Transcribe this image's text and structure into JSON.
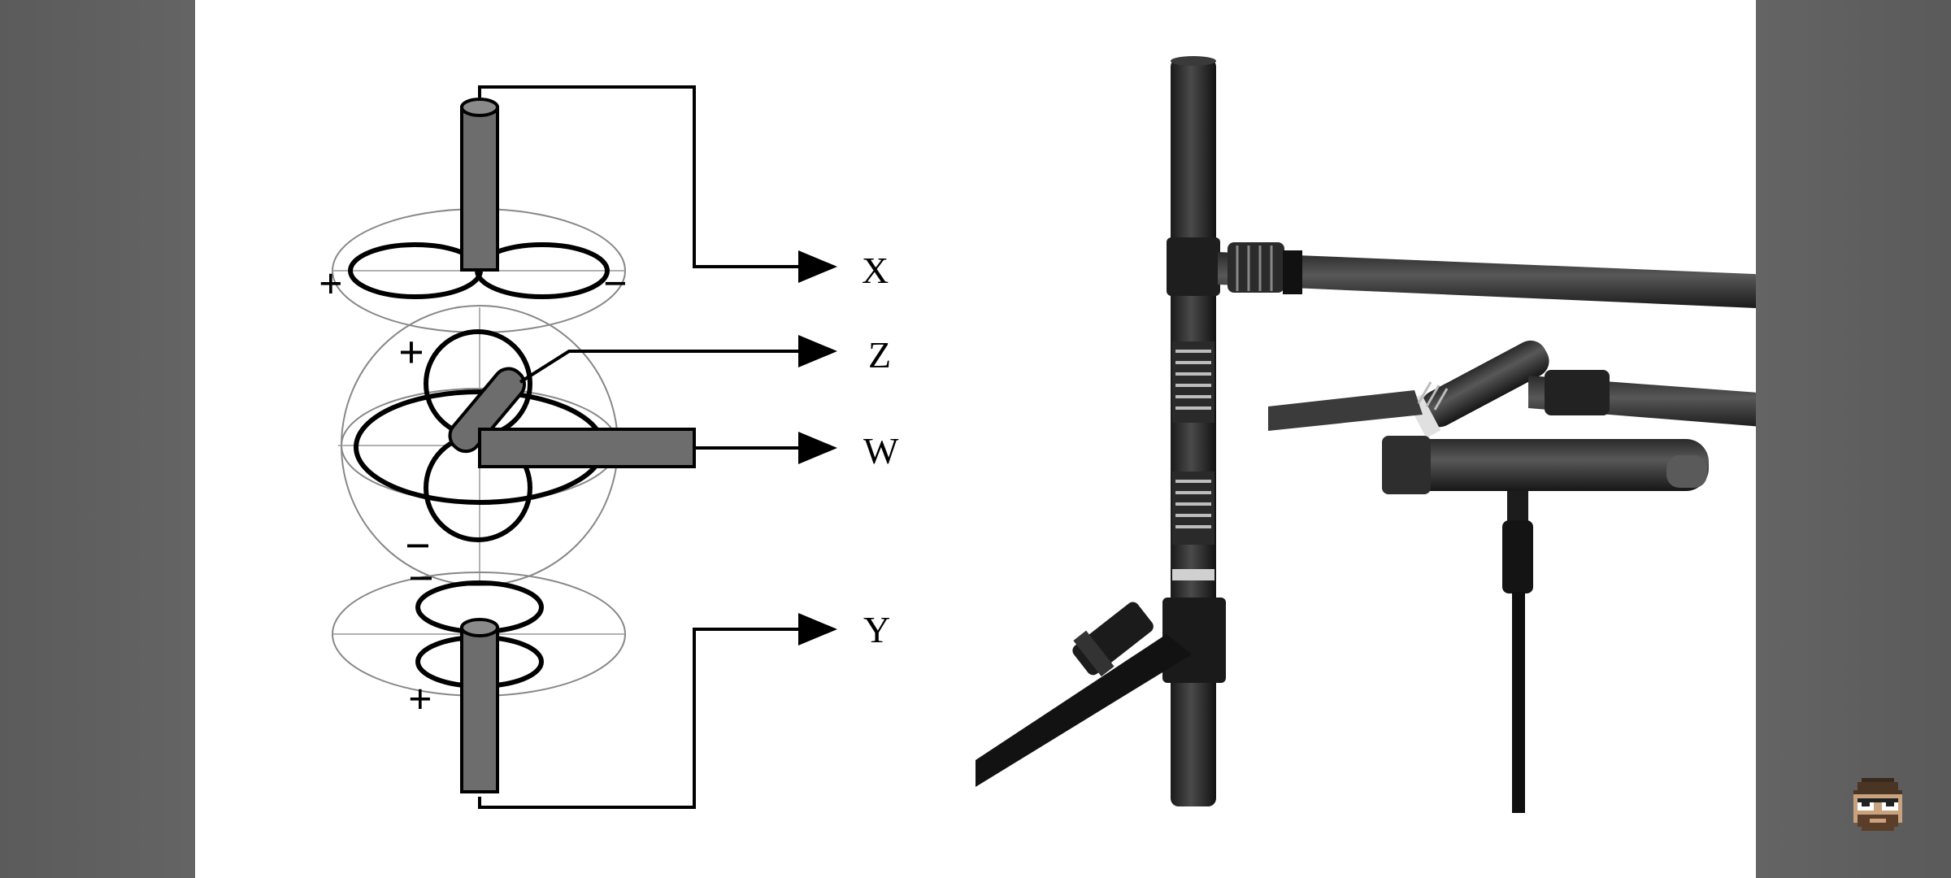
{
  "diagram": {
    "labels": {
      "x": "X",
      "z": "Z",
      "w": "W",
      "y": "Y"
    },
    "polarity": {
      "x_left": "+",
      "x_right": "−",
      "z_top": "+",
      "z_bottom": "−",
      "y_top": "−",
      "y_bottom": "+"
    }
  },
  "photo": {
    "subject": "soundfield microphone array on stands"
  },
  "overlay": {
    "avatar_icon": "pixel-character-avatar-icon"
  },
  "colors": {
    "side_bars": "#5f5f5f",
    "slide_bg": "#ffffff",
    "mic_gray": "#6d6d6d",
    "ink": "#000000"
  }
}
